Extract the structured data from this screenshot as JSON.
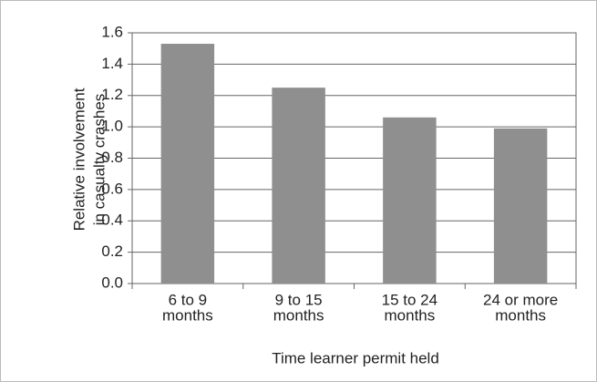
{
  "chart_data": {
    "type": "bar",
    "categories": [
      [
        "6 to 9",
        "months"
      ],
      [
        "9 to 15",
        "months"
      ],
      [
        "15 to 24",
        "months"
      ],
      [
        "24 or more",
        "months"
      ]
    ],
    "values": [
      1.53,
      1.25,
      1.06,
      0.99
    ],
    "color": "#8f8f8f",
    "xlabel": "Time learner permit held",
    "ylabel": [
      "Relative involvement",
      "in casualty crashes"
    ],
    "ylim": [
      0,
      1.6
    ],
    "yticks": [
      {
        "value": 0,
        "label": "0.0"
      },
      0.2,
      0.4,
      0.6,
      0.8,
      {
        "value": 1,
        "label": "1.0"
      },
      1.2,
      1.4,
      1.6
    ],
    "grid": true
  }
}
